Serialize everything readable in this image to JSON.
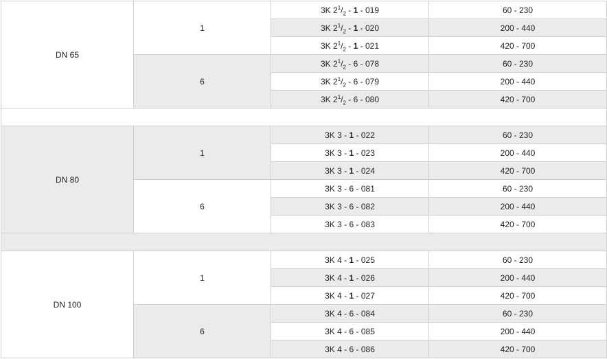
{
  "colors": {
    "gray": "#ebebe9",
    "white": "#ffffff",
    "border": "#cfcfcf"
  },
  "groups": [
    {
      "size": "DN 65",
      "shade": "w",
      "spacer_shade": "w",
      "pressures": [
        {
          "value": "1",
          "shade": "w",
          "rows": [
            {
              "prefix": "3K 2",
              "sup": "1",
              "sub": "2",
              "mid": "1",
              "suffix": "019",
              "range": "60 - 230"
            },
            {
              "prefix": "3K 2",
              "sup": "1",
              "sub": "2",
              "mid": "1",
              "suffix": "020",
              "range": "200 - 440"
            },
            {
              "prefix": "3K 2",
              "sup": "1",
              "sub": "2",
              "mid": "1",
              "suffix": "021",
              "range": "420 - 700"
            }
          ]
        },
        {
          "value": "6",
          "shade": "g",
          "rows": [
            {
              "prefix": "3K 2",
              "sup": "1",
              "sub": "2",
              "mid": "6",
              "suffix": "078",
              "range": "60 - 230"
            },
            {
              "prefix": "3K 2",
              "sup": "1",
              "sub": "2",
              "mid": "6",
              "suffix": "079",
              "range": "200 - 440"
            },
            {
              "prefix": "3K 2",
              "sup": "1",
              "sub": "2",
              "mid": "6",
              "suffix": "080",
              "range": "420 - 700"
            }
          ]
        }
      ]
    },
    {
      "size": "DN 80",
      "shade": "g",
      "spacer_shade": "g",
      "pressures": [
        {
          "value": "1",
          "shade": "g",
          "rows": [
            {
              "prefix": "3K 3",
              "mid": "1",
              "suffix": "022",
              "range": "60 - 230"
            },
            {
              "prefix": "3K 3",
              "mid": "1",
              "suffix": "023",
              "range": "200 - 440"
            },
            {
              "prefix": "3K 3",
              "mid": "1",
              "suffix": "024",
              "range": "420 - 700"
            }
          ]
        },
        {
          "value": "6",
          "shade": "w",
          "rows": [
            {
              "prefix": "3K 3",
              "mid": "6",
              "suffix": "081",
              "range": "60 - 230"
            },
            {
              "prefix": "3K 3",
              "mid": "6",
              "suffix": "082",
              "range": "200 - 440"
            },
            {
              "prefix": "3K 3",
              "mid": "6",
              "suffix": "083",
              "range": "420 - 700"
            }
          ]
        }
      ]
    },
    {
      "size": "DN 100",
      "shade": "w",
      "pressures": [
        {
          "value": "1",
          "shade": "w",
          "rows": [
            {
              "prefix": "3K 4",
              "mid": "1",
              "suffix": "025",
              "range": "60 - 230"
            },
            {
              "prefix": "3K 4",
              "mid": "1",
              "suffix": "026",
              "range": "200 - 440"
            },
            {
              "prefix": "3K 4",
              "mid": "1",
              "suffix": "027",
              "range": "420 - 700"
            }
          ]
        },
        {
          "value": "6",
          "shade": "g",
          "rows": [
            {
              "prefix": "3K 4",
              "mid": "6",
              "suffix": "084",
              "range": "60 - 230"
            },
            {
              "prefix": "3K 4",
              "mid": "6",
              "suffix": "085",
              "range": "200 - 440"
            },
            {
              "prefix": "3K 4",
              "mid": "6",
              "suffix": "086",
              "range": "420 - 700"
            }
          ]
        }
      ]
    }
  ]
}
